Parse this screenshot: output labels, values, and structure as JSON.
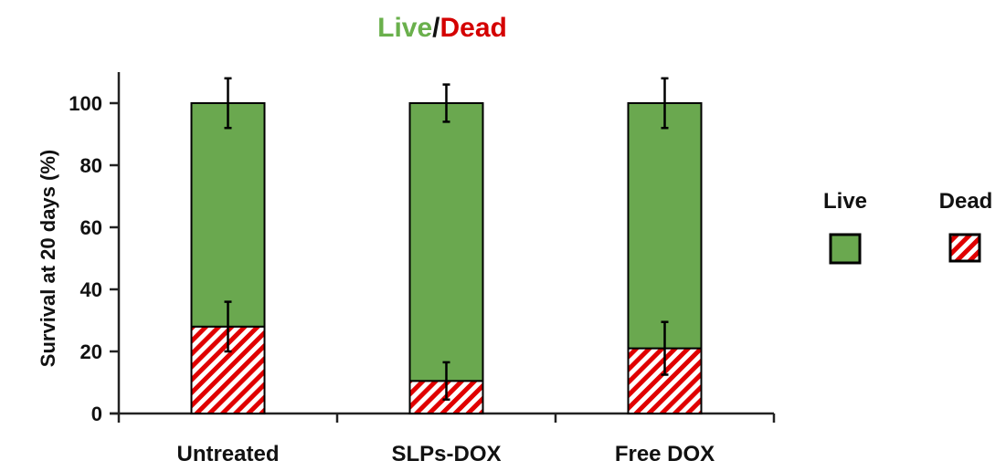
{
  "chart_data": {
    "type": "bar",
    "stacked": true,
    "title_parts": [
      {
        "text": "Live",
        "color": "#6ab04c"
      },
      {
        "text": "/",
        "color": "#111111"
      },
      {
        "text": "Dead",
        "color": "#d40000"
      }
    ],
    "ylabel": "Survival at 20 days (%)",
    "xlabel": "",
    "ylim": [
      0,
      110
    ],
    "yticks": [
      0,
      20,
      40,
      60,
      80,
      100
    ],
    "categories": [
      "Untreated",
      "SLPs-DOX",
      "Free DOX"
    ],
    "series": [
      {
        "name": "Dead",
        "values": [
          28,
          10.5,
          21
        ],
        "errors": [
          8,
          6,
          8.5
        ],
        "color": "#d40000",
        "pattern": "hatched"
      },
      {
        "name": "Live",
        "values": [
          72,
          89.5,
          79
        ],
        "errors": [
          8,
          6,
          8
        ],
        "color": "#6aa84f",
        "pattern": "solid"
      }
    ],
    "legend": {
      "placement": "right",
      "order": [
        "Live",
        "Dead"
      ]
    },
    "grid": false
  }
}
